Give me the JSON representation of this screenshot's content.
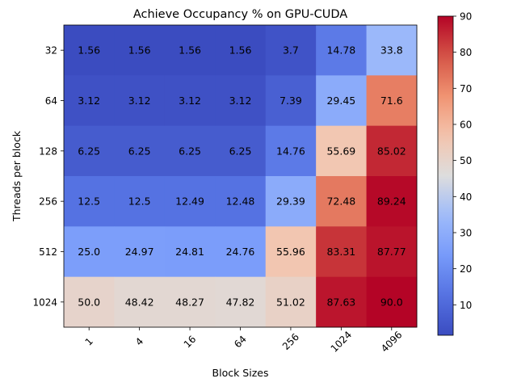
{
  "chart_data": {
    "type": "heatmap",
    "title": "Achieve Occupancy % on GPU-CUDA",
    "xlabel": "Block Sizes",
    "ylabel": "Threads per block",
    "x_categories": [
      "1",
      "4",
      "16",
      "64",
      "256",
      "1024",
      "4096"
    ],
    "y_categories": [
      "32",
      "64",
      "128",
      "256",
      "512",
      "1024"
    ],
    "values": [
      [
        1.56,
        1.56,
        1.56,
        1.56,
        3.7,
        14.78,
        33.8
      ],
      [
        3.12,
        3.12,
        3.12,
        3.12,
        7.39,
        29.45,
        71.6
      ],
      [
        6.25,
        6.25,
        6.25,
        6.25,
        14.76,
        55.69,
        85.02
      ],
      [
        12.5,
        12.5,
        12.49,
        12.48,
        29.39,
        72.48,
        89.24
      ],
      [
        25.0,
        24.97,
        24.81,
        24.76,
        55.96,
        83.31,
        87.77
      ],
      [
        50.0,
        48.42,
        48.27,
        47.82,
        51.02,
        87.63,
        90.0
      ]
    ],
    "cell_labels": [
      [
        "1.56",
        "1.56",
        "1.56",
        "1.56",
        "3.7",
        "14.78",
        "33.8"
      ],
      [
        "3.12",
        "3.12",
        "3.12",
        "3.12",
        "7.39",
        "29.45",
        "71.6"
      ],
      [
        "6.25",
        "6.25",
        "6.25",
        "6.25",
        "14.76",
        "55.69",
        "85.02"
      ],
      [
        "12.5",
        "12.5",
        "12.49",
        "12.48",
        "29.39",
        "72.48",
        "89.24"
      ],
      [
        "25.0",
        "24.97",
        "24.81",
        "24.76",
        "55.96",
        "83.31",
        "87.77"
      ],
      [
        "50.0",
        "48.42",
        "48.27",
        "47.82",
        "51.02",
        "87.63",
        "90.0"
      ]
    ],
    "colormap": "coolwarm",
    "colorbar": {
      "range": [
        1.56,
        90
      ],
      "ticks": [
        10,
        20,
        30,
        40,
        50,
        60,
        70,
        80,
        90
      ],
      "tick_labels": [
        "10",
        "20",
        "30",
        "40",
        "50",
        "60",
        "70",
        "80",
        "90"
      ]
    },
    "x_tick_rotation_deg": 45,
    "grid": false,
    "legend": "none"
  }
}
